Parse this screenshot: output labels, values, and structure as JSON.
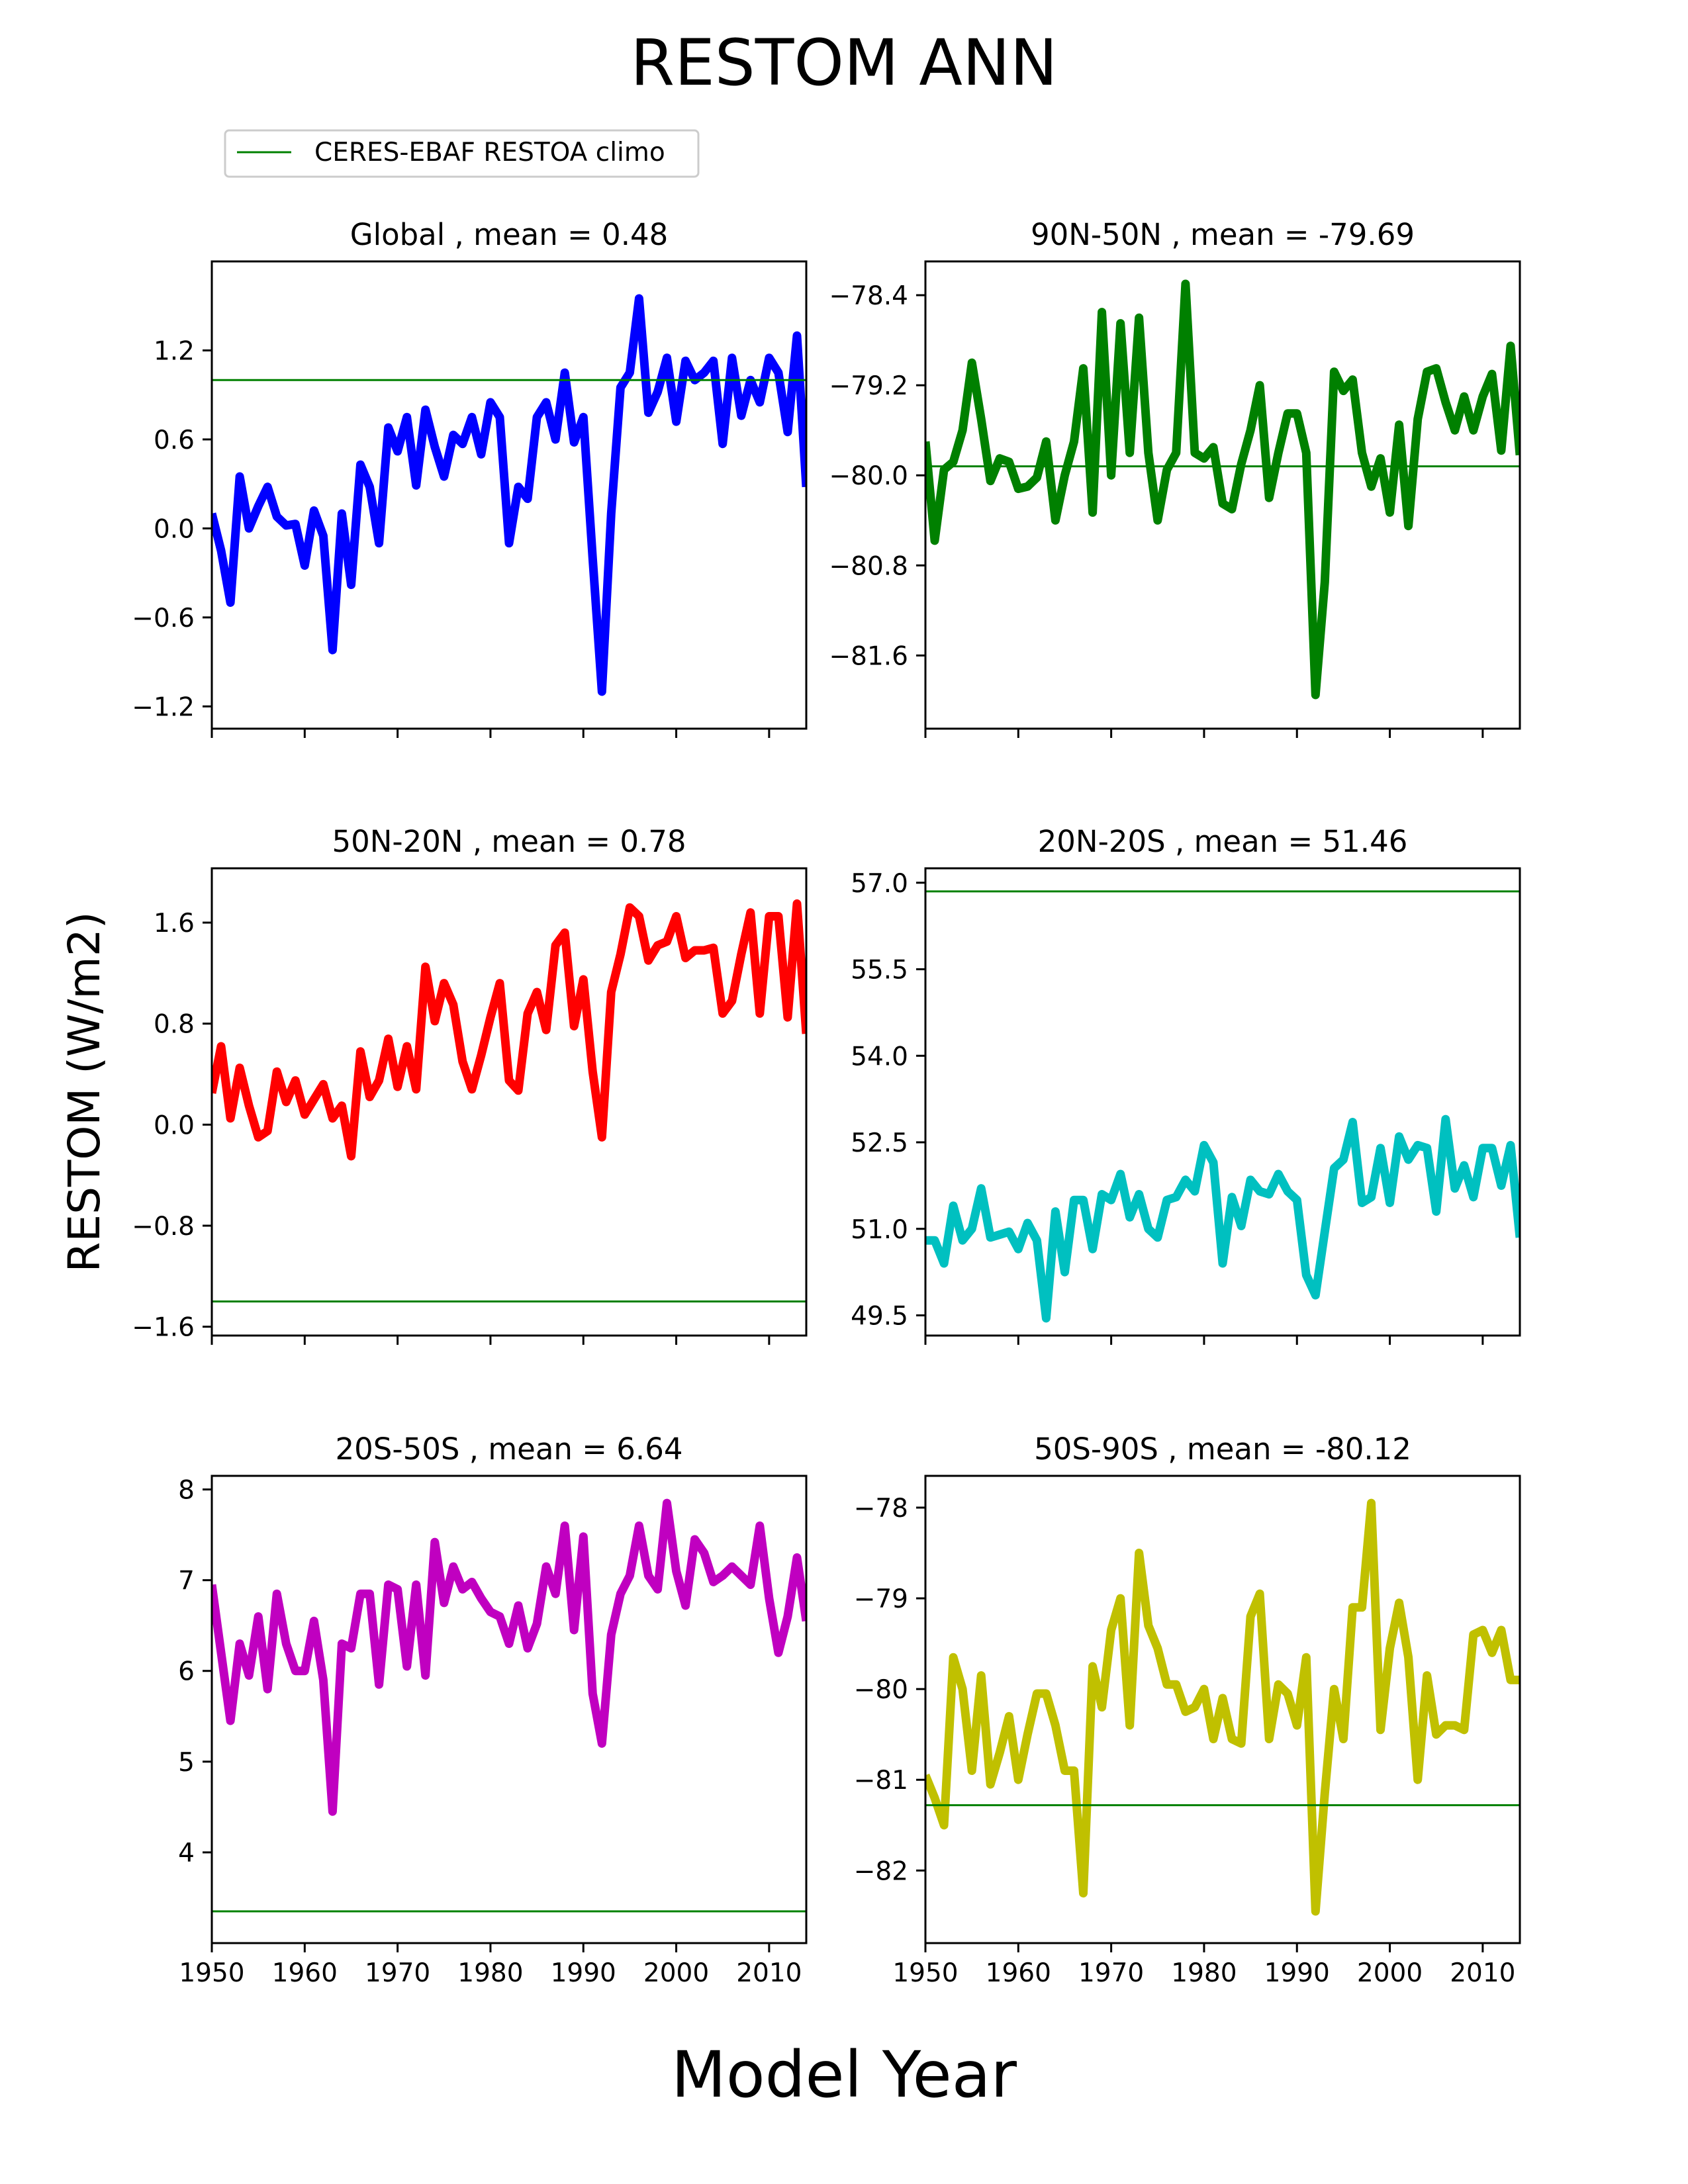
{
  "figure": {
    "title": "RESTOM ANN",
    "xlabel": "Model Year",
    "ylabel": "RESTOM (W/m2)",
    "legend_label": "CERES-EBAF RESTOA climo",
    "legend_color": "#008000",
    "x_tick_labels": [
      "1950",
      "1960",
      "1970",
      "1980",
      "1990",
      "2000",
      "2010"
    ]
  },
  "chart_data": [
    {
      "type": "line",
      "title": "Global , mean = 0.48",
      "color": "#0000ff",
      "x_start": 1950,
      "xlim": [
        1950,
        2014
      ],
      "ylim": [
        -1.35,
        1.8
      ],
      "yticks": [
        -1.2,
        -0.6,
        0.0,
        0.6,
        1.2
      ],
      "ytick_labels": [
        "−1.2",
        "−0.6",
        "0.0",
        "0.6",
        "1.2"
      ],
      "climo": 1.0,
      "values": [
        0.1,
        -0.15,
        -0.5,
        0.35,
        0.0,
        0.15,
        0.28,
        0.08,
        0.02,
        0.03,
        -0.25,
        0.12,
        -0.05,
        -0.82,
        0.1,
        -0.38,
        0.43,
        0.28,
        -0.1,
        0.68,
        0.52,
        0.75,
        0.29,
        0.8,
        0.55,
        0.35,
        0.63,
        0.57,
        0.75,
        0.5,
        0.85,
        0.75,
        -0.1,
        0.28,
        0.2,
        0.75,
        0.85,
        0.6,
        1.05,
        0.58,
        0.75,
        -0.2,
        -1.1,
        0.1,
        0.95,
        1.05,
        1.55,
        0.78,
        0.92,
        1.15,
        0.72,
        1.13,
        1.0,
        1.05,
        1.13,
        0.57,
        1.15,
        0.76,
        1.0,
        0.85,
        1.15,
        1.05,
        0.65,
        1.3,
        0.28
      ]
    },
    {
      "type": "line",
      "title": "90N-50N , mean = -79.69",
      "color": "#008000",
      "x_start": 1950,
      "xlim": [
        1950,
        2014
      ],
      "ylim": [
        -82.25,
        -78.1
      ],
      "yticks": [
        -81.6,
        -80.8,
        -80.0,
        -79.2,
        -78.4
      ],
      "ytick_labels": [
        "−81.6",
        "−80.8",
        "−80.0",
        "−79.2",
        "−78.4"
      ],
      "climo": -79.92,
      "values": [
        -79.7,
        -80.58,
        -79.95,
        -79.88,
        -79.6,
        -79.0,
        -79.5,
        -80.05,
        -79.85,
        -79.88,
        -80.12,
        -80.1,
        -80.02,
        -79.7,
        -80.4,
        -80.0,
        -79.7,
        -79.05,
        -80.33,
        -78.55,
        -80.0,
        -78.65,
        -79.8,
        -78.6,
        -79.8,
        -80.4,
        -79.95,
        -79.8,
        -78.3,
        -79.8,
        -79.85,
        -79.75,
        -80.25,
        -80.3,
        -79.9,
        -79.6,
        -79.2,
        -80.2,
        -79.8,
        -79.45,
        -79.45,
        -79.8,
        -81.95,
        -80.95,
        -79.08,
        -79.25,
        -79.15,
        -79.8,
        -80.1,
        -79.85,
        -80.33,
        -79.55,
        -80.45,
        -79.5,
        -79.08,
        -79.05,
        -79.35,
        -79.6,
        -79.3,
        -79.6,
        -79.3,
        -79.1,
        -79.78,
        -78.85,
        -79.82
      ]
    },
    {
      "type": "line",
      "title": "50N-20N , mean = 0.78",
      "color": "#ff0000",
      "x_start": 1950,
      "xlim": [
        1950,
        2014
      ],
      "ylim": [
        -1.67,
        2.03
      ],
      "yticks": [
        -1.6,
        -0.8,
        0.0,
        0.8,
        1.6
      ],
      "ytick_labels": [
        "−1.6",
        "−0.8",
        "0.0",
        "0.8",
        "1.6"
      ],
      "climo": -1.4,
      "values": [
        0.25,
        0.62,
        0.05,
        0.45,
        0.15,
        -0.1,
        -0.05,
        0.42,
        0.18,
        0.35,
        0.08,
        0.2,
        0.32,
        0.05,
        0.15,
        -0.25,
        0.58,
        0.22,
        0.35,
        0.68,
        0.3,
        0.62,
        0.28,
        1.25,
        0.82,
        1.12,
        0.95,
        0.5,
        0.28,
        0.55,
        0.85,
        1.12,
        0.35,
        0.27,
        0.88,
        1.05,
        0.75,
        1.42,
        1.52,
        0.78,
        1.15,
        0.42,
        -0.1,
        1.05,
        1.35,
        1.72,
        1.65,
        1.3,
        1.42,
        1.45,
        1.65,
        1.32,
        1.38,
        1.38,
        1.4,
        0.88,
        0.98,
        1.35,
        1.68,
        0.88,
        1.65,
        1.65,
        0.85,
        1.75,
        0.72
      ]
    },
    {
      "type": "line",
      "title": "20N-20S , mean = 51.46",
      "color": "#00c0c0",
      "x_start": 1950,
      "xlim": [
        1950,
        2014
      ],
      "ylim": [
        49.15,
        57.25
      ],
      "yticks": [
        49.5,
        51.0,
        52.5,
        54.0,
        55.5,
        57.0
      ],
      "ytick_labels": [
        "49.5",
        "51.0",
        "52.5",
        "54.0",
        "55.5",
        "57.0"
      ],
      "climo": 56.85,
      "values": [
        50.8,
        50.8,
        50.4,
        51.4,
        50.8,
        51.0,
        51.7,
        50.85,
        50.9,
        50.95,
        50.65,
        51.1,
        50.8,
        49.45,
        51.3,
        50.25,
        51.5,
        51.5,
        50.65,
        51.6,
        51.5,
        51.95,
        51.2,
        51.6,
        51.0,
        50.85,
        51.5,
        51.55,
        51.85,
        51.65,
        52.45,
        52.15,
        50.4,
        51.55,
        51.05,
        51.85,
        51.65,
        51.6,
        51.95,
        51.65,
        51.5,
        50.2,
        49.85,
        50.95,
        52.05,
        52.2,
        52.85,
        51.45,
        51.55,
        52.4,
        51.45,
        52.6,
        52.2,
        52.45,
        52.4,
        51.3,
        52.9,
        51.7,
        52.1,
        51.55,
        52.4,
        52.4,
        51.75,
        52.45,
        50.85
      ]
    },
    {
      "type": "line",
      "title": "20S-50S , mean = 6.64",
      "color": "#c000c0",
      "x_start": 1950,
      "xlim": [
        1950,
        2014
      ],
      "ylim": [
        3.0,
        8.15
      ],
      "yticks": [
        4,
        5,
        6,
        7,
        8
      ],
      "ytick_labels": [
        "4",
        "5",
        "6",
        "7",
        "8"
      ],
      "climo": 3.35,
      "values": [
        6.95,
        6.2,
        5.45,
        6.3,
        5.95,
        6.6,
        5.8,
        6.85,
        6.3,
        6.0,
        6.0,
        6.55,
        5.9,
        4.45,
        6.3,
        6.25,
        6.85,
        6.85,
        5.85,
        6.95,
        6.9,
        6.05,
        6.95,
        5.95,
        7.42,
        6.75,
        7.15,
        6.9,
        6.98,
        6.8,
        6.65,
        6.6,
        6.3,
        6.72,
        6.25,
        6.52,
        7.15,
        6.85,
        7.6,
        6.45,
        7.48,
        5.75,
        5.2,
        6.4,
        6.85,
        7.05,
        7.6,
        7.05,
        6.9,
        7.85,
        7.1,
        6.72,
        7.45,
        7.3,
        6.98,
        7.05,
        7.15,
        7.05,
        6.95,
        7.6,
        6.8,
        6.2,
        6.6,
        7.25,
        6.55
      ]
    },
    {
      "type": "line",
      "title": "50S-90S , mean = -80.12",
      "color": "#c0c000",
      "x_start": 1950,
      "xlim": [
        1950,
        2014
      ],
      "ylim": [
        -82.8,
        -77.65
      ],
      "yticks": [
        -82,
        -81,
        -80,
        -79,
        -78
      ],
      "ytick_labels": [
        "−82",
        "−81",
        "−80",
        "−79",
        "−78"
      ],
      "climo": -81.28,
      "values": [
        -80.95,
        -81.2,
        -81.5,
        -79.65,
        -80.0,
        -80.9,
        -79.85,
        -81.05,
        -80.7,
        -80.3,
        -81.0,
        -80.5,
        -80.05,
        -80.05,
        -80.4,
        -80.9,
        -80.9,
        -82.25,
        -79.75,
        -80.2,
        -79.35,
        -79.0,
        -80.4,
        -78.5,
        -79.3,
        -79.55,
        -79.95,
        -79.95,
        -80.25,
        -80.2,
        -80.0,
        -80.55,
        -80.1,
        -80.55,
        -80.6,
        -79.2,
        -78.95,
        -80.55,
        -79.95,
        -80.05,
        -80.4,
        -79.65,
        -82.45,
        -81.15,
        -80.0,
        -80.55,
        -79.1,
        -79.1,
        -77.95,
        -80.45,
        -79.55,
        -79.05,
        -79.65,
        -81.0,
        -79.85,
        -80.5,
        -80.4,
        -80.4,
        -80.45,
        -79.4,
        -79.35,
        -79.6,
        -79.35,
        -79.9,
        -79.9
      ]
    }
  ]
}
